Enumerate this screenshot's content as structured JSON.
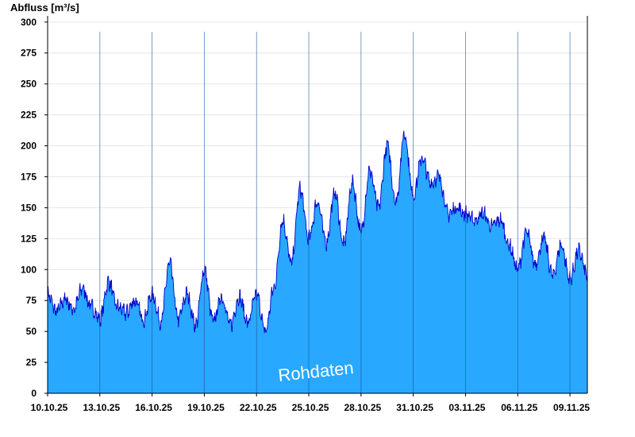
{
  "chart_data": {
    "type": "area",
    "ylabel": "Abfluss [m³/s]",
    "annotation": "Rohdaten",
    "ylim": [
      0,
      305
    ],
    "yticks": [
      0,
      25,
      50,
      75,
      100,
      125,
      150,
      175,
      200,
      225,
      250,
      275,
      300
    ],
    "xlim": [
      "2025-10-10T00:00",
      "2025-11-10T00:00"
    ],
    "xticks": [
      {
        "date": "2025-10-10",
        "label": "10.10.25"
      },
      {
        "date": "2025-10-13",
        "label": "13.10.25"
      },
      {
        "date": "2025-10-16",
        "label": "16.10.25"
      },
      {
        "date": "2025-10-19",
        "label": "19.10.25"
      },
      {
        "date": "2025-10-22",
        "label": "22.10.25"
      },
      {
        "date": "2025-10-25",
        "label": "25.10.25"
      },
      {
        "date": "2025-10-28",
        "label": "28.10.25"
      },
      {
        "date": "2025-10-31",
        "label": "31.10.25"
      },
      {
        "date": "2025-11-03",
        "label": "03.11.25"
      },
      {
        "date": "2025-11-06",
        "label": "06.11.25"
      },
      {
        "date": "2025-11-09",
        "label": "09.11.25"
      }
    ],
    "grid": true,
    "colors": {
      "fill": "#29a8ff",
      "line": "#0000cc",
      "grid": "#e6e6e6",
      "axis": "#000000",
      "divider": "#1a4f90"
    },
    "series": [
      {
        "x": [
          "2025-10-10T00:00",
          "2025-10-10T12:00",
          "2025-10-11T00:00",
          "2025-10-11T12:00",
          "2025-10-12T00:00",
          "2025-10-12T12:00",
          "2025-10-13T00:00",
          "2025-10-13T12:00",
          "2025-10-14T00:00",
          "2025-10-14T12:00",
          "2025-10-15T00:00",
          "2025-10-15T12:00",
          "2025-10-16T00:00",
          "2025-10-16T12:00",
          "2025-10-17T00:00",
          "2025-10-17T12:00",
          "2025-10-18T00:00",
          "2025-10-18T12:00",
          "2025-10-19T00:00",
          "2025-10-19T12:00",
          "2025-10-20T00:00",
          "2025-10-20T12:00",
          "2025-10-21T00:00",
          "2025-10-21T12:00",
          "2025-10-22T00:00",
          "2025-10-22T12:00",
          "2025-10-23T00:00",
          "2025-10-23T12:00",
          "2025-10-24T00:00",
          "2025-10-24T12:00",
          "2025-10-25T00:00",
          "2025-10-25T12:00",
          "2025-10-26T00:00",
          "2025-10-26T12:00",
          "2025-10-27T00:00",
          "2025-10-27T12:00",
          "2025-10-28T00:00",
          "2025-10-28T12:00",
          "2025-10-29T00:00",
          "2025-10-29T12:00",
          "2025-10-30T00:00",
          "2025-10-30T12:00",
          "2025-10-31T00:00",
          "2025-10-31T12:00",
          "2025-11-01T00:00",
          "2025-11-01T12:00",
          "2025-11-02T00:00",
          "2025-11-02T12:00",
          "2025-11-03T00:00",
          "2025-11-03T12:00",
          "2025-11-04T00:00",
          "2025-11-04T12:00",
          "2025-11-05T00:00",
          "2025-11-05T12:00",
          "2025-11-06T00:00",
          "2025-11-06T12:00",
          "2025-11-07T00:00",
          "2025-11-07T12:00",
          "2025-11-08T00:00",
          "2025-11-08T12:00",
          "2025-11-09T00:00",
          "2025-11-09T12:00",
          "2025-11-10T00:00"
        ],
        "y": [
          80,
          66,
          76,
          68,
          85,
          70,
          60,
          90,
          70,
          65,
          75,
          60,
          80,
          58,
          105,
          60,
          80,
          55,
          100,
          58,
          78,
          55,
          78,
          57,
          80,
          50,
          85,
          140,
          105,
          165,
          125,
          155,
          122,
          162,
          120,
          170,
          130,
          180,
          150,
          200,
          155,
          210,
          160,
          190,
          170,
          175,
          145,
          150,
          145,
          140,
          145,
          135,
          140,
          120,
          100,
          130,
          105,
          125,
          95,
          120,
          92,
          115,
          95
        ]
      }
    ]
  }
}
